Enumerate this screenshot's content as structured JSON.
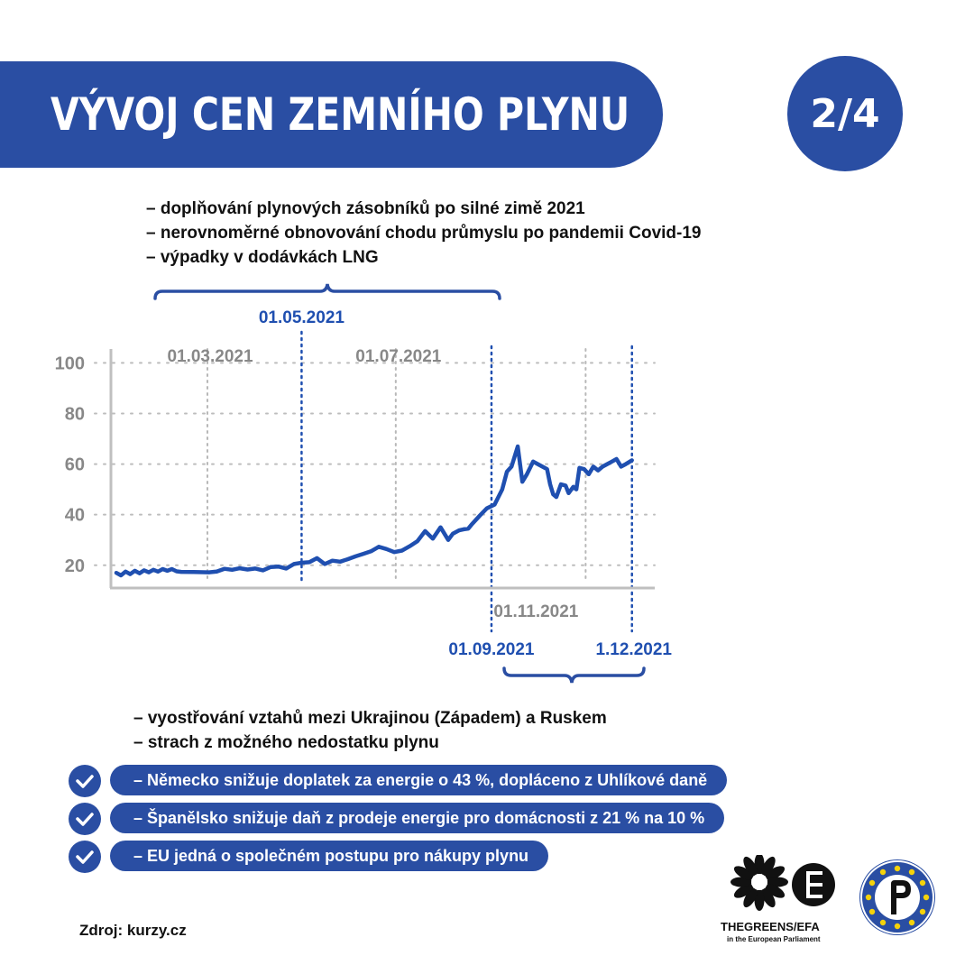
{
  "title": "VÝVOJ CEN ZEMNÍHO PLYNU",
  "page_indicator": "2/4",
  "reasons_first_period": [
    "– doplňování plynových zásobníků po silné zimě 2021",
    "– nerovnoměrné obnovování chodu průmyslu po pandemii Covid-19",
    "– výpadky v dodávkách LNG"
  ],
  "reasons_second_period": [
    "– vyostřování vztahů mezi Ukrajinou (Západem) a Ruskem",
    "– strach z možného nedostatku plynu"
  ],
  "measures": [
    "– Německo snižuje doplatek za energie o 43 %, dopláceno z Uhlíkové daně",
    "– Španělsko snižuje daň z prodeje energie pro domácnosti z 21 % na 10 %",
    "– EU jedná o společném postupu pro nákupy plynu"
  ],
  "source": "Zdroj: kurzy.cz",
  "logos": {
    "greens": "THEGREENS/EFA",
    "greens_sub": "in the European Parliament"
  },
  "colors": {
    "brand_blue": "#2a4ea3",
    "line_blue": "#1f4fb0",
    "axis_gray": "#bfbfbf",
    "label_gray": "#888888"
  },
  "chart_data": {
    "type": "line",
    "y_ticks": [
      20,
      40,
      60,
      80,
      100
    ],
    "ylim": [
      11,
      108
    ],
    "xlim": [
      0,
      340
    ],
    "grid": "dotted horizontal",
    "gray_markers": [
      {
        "label": "01.03.2021",
        "x": 59
      },
      {
        "label": "01.07.2021",
        "x": 181
      },
      {
        "label": "01.11.2021",
        "x": 304
      }
    ],
    "blue_markers": [
      {
        "label": "01.05.2021",
        "x": 120
      },
      {
        "label": "01.09.2021",
        "x": 243
      },
      {
        "label": "1.12.2021",
        "x": 334
      }
    ],
    "series": [
      {
        "x": [
          0,
          3,
          6,
          9,
          12,
          15,
          18,
          21,
          24,
          27,
          30,
          33,
          36,
          39,
          42,
          50,
          60,
          65,
          70,
          75,
          80,
          85,
          90,
          95,
          100,
          105,
          110,
          115,
          120,
          125,
          130,
          135,
          140,
          145,
          150,
          155,
          160,
          165,
          170,
          175,
          180,
          185,
          190,
          195,
          200,
          205,
          210,
          215,
          218,
          222,
          225,
          228,
          230,
          233,
          236,
          240,
          245,
          250,
          253,
          256,
          260,
          263,
          266,
          270,
          273,
          276,
          279,
          281,
          283,
          285,
          288,
          291,
          293,
          296,
          298,
          300,
          303,
          306,
          309,
          312,
          315,
          318,
          321,
          324,
          327,
          330,
          334
        ],
        "values": [
          17,
          16,
          17.5,
          16.5,
          17.8,
          16.8,
          18,
          17.2,
          18.2,
          17.5,
          18.5,
          17.8,
          18.5,
          17.6,
          17.4,
          17.3,
          17.2,
          17.5,
          18.6,
          18.2,
          18.8,
          18.3,
          18.7,
          18,
          19.3,
          19.5,
          18.7,
          20.5,
          21,
          21.2,
          22.8,
          20.5,
          21.8,
          21.4,
          22.4,
          23.5,
          24.5,
          25.5,
          27.3,
          26.4,
          25.2,
          25.8,
          27.5,
          29.5,
          33.5,
          30.5,
          35,
          30,
          32.5,
          33.8,
          34.2,
          34.5,
          36,
          38,
          40,
          42.5,
          44,
          50,
          57,
          59,
          67,
          53,
          56,
          61,
          60,
          59,
          58,
          52,
          48,
          47,
          52,
          51.5,
          48.5,
          51,
          50,
          58.5,
          58,
          56,
          59,
          57.5,
          59,
          60,
          61,
          62,
          59,
          60,
          61.5
        ]
      }
    ]
  }
}
